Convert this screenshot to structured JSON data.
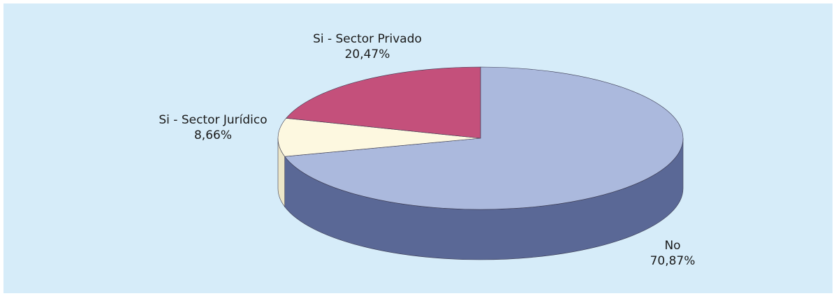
{
  "chart_data": {
    "type": "pie3d",
    "categories": [
      "No",
      "Si - Sector Jurídico",
      "Si - Sector Privado"
    ],
    "values": [
      70.87,
      8.66,
      20.47
    ],
    "value_labels": [
      "70,87%",
      "8,66%",
      "20,47%"
    ],
    "colors": [
      "#abb9dd",
      "#fdf8e0",
      "#c4507b"
    ],
    "side_colors": [
      "#5a6896",
      "#ece6c8",
      "#8e3557"
    ]
  }
}
